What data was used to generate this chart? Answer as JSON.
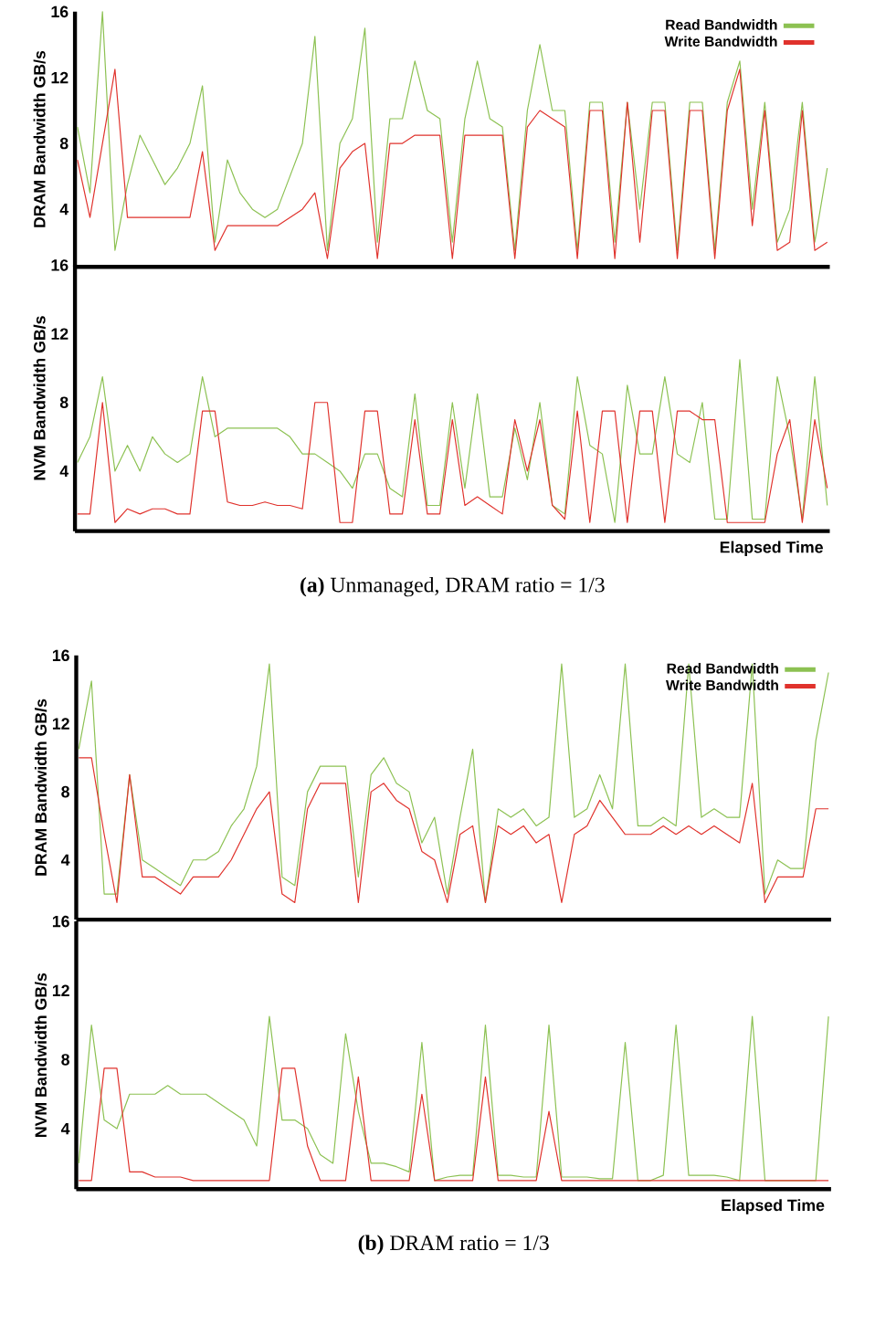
{
  "chart_data": [
    {
      "type": "line",
      "ylabel": "DRAM Bandwidth GB/s",
      "ylim": [
        0.5,
        16
      ],
      "yticks": [
        4,
        8,
        12,
        16
      ],
      "legend": "top right",
      "marker": "none",
      "line_style": "solid",
      "categories": [
        null,
        null,
        null,
        null,
        null,
        null,
        null,
        null,
        null,
        null,
        null,
        null,
        null,
        null,
        null,
        null,
        null,
        null,
        null,
        null,
        null,
        null,
        null,
        null,
        null,
        null,
        null,
        null,
        null,
        null,
        null,
        null,
        null,
        null,
        null,
        null,
        null,
        null,
        null,
        null,
        null,
        null,
        null,
        null,
        null,
        null,
        null,
        null,
        null,
        null,
        null,
        null,
        null,
        null,
        null,
        null,
        null,
        null,
        null,
        null,
        null
      ],
      "series": [
        {
          "name": "Read Bandwidth",
          "color": "#8cc152",
          "values": [
            9,
            5,
            16,
            1.5,
            5.5,
            8.5,
            7,
            5.5,
            6.5,
            8,
            11.5,
            2,
            7,
            5,
            4,
            3.5,
            4,
            6,
            8,
            14.5,
            1.5,
            8,
            9.5,
            15,
            2,
            9.5,
            9.5,
            13,
            10,
            9.5,
            2,
            9.5,
            13,
            9.5,
            9,
            1.5,
            10,
            14,
            10,
            10,
            1.5,
            10.5,
            10.5,
            2,
            10.5,
            4,
            10.5,
            10.5,
            1.5,
            10.5,
            10.5,
            1.5,
            10.5,
            13,
            4,
            10.5,
            2,
            4,
            10.5,
            2,
            6.5
          ]
        },
        {
          "name": "Write Bandwidth",
          "color": "#e0322c",
          "values": [
            7,
            3.5,
            8,
            12.5,
            3.5,
            3.5,
            3.5,
            3.5,
            3.5,
            3.5,
            7.5,
            1.5,
            3,
            3,
            3,
            3,
            3,
            3.5,
            4,
            5,
            1,
            6.5,
            7.5,
            8,
            1,
            8,
            8,
            8.5,
            8.5,
            8.5,
            1,
            8.5,
            8.5,
            8.5,
            8.5,
            1,
            9,
            10,
            9.5,
            9,
            1,
            10,
            10,
            1,
            10.5,
            2,
            10,
            10,
            1,
            10,
            10,
            1,
            10,
            12.5,
            3,
            10,
            1.5,
            2,
            10,
            1.5,
            2
          ]
        }
      ]
    },
    {
      "type": "line",
      "ylabel": "NVM Bandwidth GB/s",
      "xlabel": "Elapsed Time",
      "ylim": [
        0.5,
        16
      ],
      "yticks": [
        4,
        8,
        12,
        16
      ],
      "marker": "none",
      "line_style": "solid",
      "annotations": [
        "**(a)** Unmanaged, DRAM ratio = 1/3"
      ],
      "categories": [
        null,
        null,
        null,
        null,
        null,
        null,
        null,
        null,
        null,
        null,
        null,
        null,
        null,
        null,
        null,
        null,
        null,
        null,
        null,
        null,
        null,
        null,
        null,
        null,
        null,
        null,
        null,
        null,
        null,
        null,
        null,
        null,
        null,
        null,
        null,
        null,
        null,
        null,
        null,
        null,
        null,
        null,
        null,
        null,
        null,
        null,
        null,
        null,
        null,
        null,
        null,
        null,
        null,
        null,
        null,
        null,
        null,
        null,
        null,
        null,
        null
      ],
      "series": [
        {
          "color": "#8cc152",
          "values": [
            4.5,
            6,
            9.5,
            4,
            5.5,
            4,
            6,
            5,
            4.5,
            5,
            9.5,
            6,
            6.5,
            6.5,
            6.5,
            6.5,
            6.5,
            6,
            5,
            5,
            4.5,
            4,
            3,
            5,
            5,
            3,
            2.5,
            8.5,
            2,
            2,
            8,
            3,
            8.5,
            2.5,
            2.5,
            6.5,
            3.5,
            8,
            2,
            1.5,
            9.5,
            5.5,
            5,
            1,
            9,
            5,
            5,
            9.5,
            5,
            4.5,
            8,
            1.2,
            1.2,
            10.5,
            1.2,
            1.2,
            9.5,
            6,
            1.2,
            9.5,
            2
          ]
        },
        {
          "color": "#e0322c",
          "values": [
            1.5,
            1.5,
            8,
            1,
            1.8,
            1.5,
            1.8,
            1.8,
            1.5,
            1.5,
            7.5,
            7.5,
            2.2,
            2,
            2,
            2.2,
            2,
            2,
            1.8,
            8,
            8,
            1,
            1,
            7.5,
            7.5,
            1.5,
            1.5,
            7,
            1.5,
            1.5,
            7,
            2,
            2.5,
            2,
            1.5,
            7,
            4,
            7,
            2,
            1.2,
            7.5,
            1,
            7.5,
            7.5,
            1,
            7.5,
            7.5,
            1,
            7.5,
            7.5,
            7,
            7,
            1,
            1,
            1,
            1,
            5,
            7,
            1,
            7,
            3
          ]
        }
      ]
    },
    {
      "type": "line",
      "ylabel": "DRAM Bandwidth GB/s",
      "ylim": [
        0.5,
        16
      ],
      "yticks": [
        4,
        8,
        12,
        16
      ],
      "legend": "top right",
      "marker": "none",
      "line_style": "solid",
      "categories": [
        null,
        null,
        null,
        null,
        null,
        null,
        null,
        null,
        null,
        null,
        null,
        null,
        null,
        null,
        null,
        null,
        null,
        null,
        null,
        null,
        null,
        null,
        null,
        null,
        null,
        null,
        null,
        null,
        null,
        null,
        null,
        null,
        null,
        null,
        null,
        null,
        null,
        null,
        null,
        null,
        null,
        null,
        null,
        null,
        null,
        null,
        null,
        null,
        null,
        null,
        null,
        null,
        null,
        null,
        null,
        null,
        null,
        null,
        null,
        null
      ],
      "series": [
        {
          "name": "Read Bandwidth",
          "color": "#8cc152",
          "values": [
            10.5,
            14.5,
            2,
            2,
            9,
            4,
            3.5,
            3,
            2.5,
            4,
            4,
            4.5,
            6,
            7,
            9.5,
            15.5,
            3,
            2.5,
            8,
            9.5,
            9.5,
            9.5,
            3,
            9,
            10,
            8.5,
            8,
            5,
            6.5,
            2,
            6.5,
            10.5,
            1.5,
            7,
            6.5,
            7,
            6,
            6.5,
            15.5,
            6.5,
            7,
            9,
            7,
            15.5,
            6,
            6,
            6.5,
            6,
            15.5,
            6.5,
            7,
            6.5,
            6.5,
            15.5,
            2,
            4,
            3.5,
            3.5,
            11,
            15
          ]
        },
        {
          "name": "Write Bandwidth",
          "color": "#e0322c",
          "values": [
            10,
            10,
            5.5,
            1.5,
            9,
            3,
            3,
            2.5,
            2,
            3,
            3,
            3,
            4,
            5.5,
            7,
            8,
            2,
            1.5,
            7,
            8.5,
            8.5,
            8.5,
            1.5,
            8,
            8.5,
            7.5,
            7,
            4.5,
            4,
            1.5,
            5.5,
            6,
            1.5,
            6,
            5.5,
            6,
            5,
            5.5,
            1.5,
            5.5,
            6,
            7.5,
            6.5,
            5.5,
            5.5,
            5.5,
            6,
            5.5,
            6,
            5.5,
            6,
            5.5,
            5,
            8.5,
            1.5,
            3,
            3,
            3,
            7,
            7
          ]
        }
      ]
    },
    {
      "type": "line",
      "ylabel": "NVM Bandwidth GB/s",
      "xlabel": "Elapsed Time",
      "ylim": [
        0.5,
        16
      ],
      "yticks": [
        4,
        8,
        12,
        16
      ],
      "marker": "none",
      "line_style": "solid",
      "annotations": [
        "**(b)** DRAM ratio = 1/3"
      ],
      "categories": [
        null,
        null,
        null,
        null,
        null,
        null,
        null,
        null,
        null,
        null,
        null,
        null,
        null,
        null,
        null,
        null,
        null,
        null,
        null,
        null,
        null,
        null,
        null,
        null,
        null,
        null,
        null,
        null,
        null,
        null,
        null,
        null,
        null,
        null,
        null,
        null,
        null,
        null,
        null,
        null,
        null,
        null,
        null,
        null,
        null,
        null,
        null,
        null,
        null,
        null,
        null,
        null,
        null,
        null,
        null,
        null,
        null,
        null,
        null,
        null
      ],
      "series": [
        {
          "color": "#8cc152",
          "values": [
            2,
            10,
            4.5,
            4,
            6,
            6,
            6,
            6.5,
            6,
            6,
            6,
            5.5,
            5,
            4.5,
            3,
            10.5,
            4.5,
            4.5,
            4,
            2.5,
            2,
            9.5,
            5,
            2,
            2,
            1.8,
            1.5,
            9,
            1,
            1.2,
            1.3,
            1.3,
            10,
            1.3,
            1.3,
            1.2,
            1.2,
            10,
            1.2,
            1.2,
            1.2,
            1.1,
            1.1,
            9,
            1,
            1,
            1.3,
            10,
            1.3,
            1.3,
            1.3,
            1.2,
            1,
            10.5,
            1,
            1,
            1,
            1,
            1,
            10.5
          ]
        },
        {
          "color": "#e0322c",
          "values": [
            1,
            1,
            7.5,
            7.5,
            1.5,
            1.5,
            1.2,
            1.2,
            1.2,
            1,
            1,
            1,
            1,
            1,
            1,
            1,
            7.5,
            7.5,
            3,
            1,
            1,
            1,
            7,
            1,
            1,
            1,
            1,
            6,
            1,
            1,
            1,
            1,
            7,
            1,
            1,
            1,
            1,
            5,
            1,
            1,
            1,
            1,
            1,
            1,
            1,
            1,
            1,
            1,
            1,
            1,
            1,
            1,
            1,
            1,
            1,
            1,
            1,
            1,
            1,
            1
          ]
        }
      ]
    }
  ]
}
